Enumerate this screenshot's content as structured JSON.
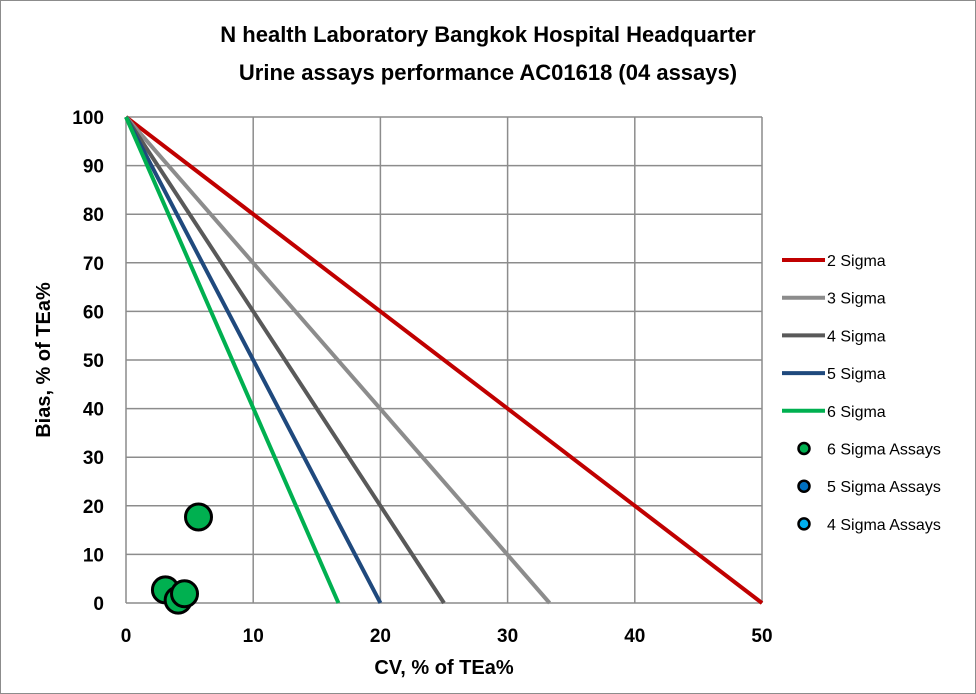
{
  "chart_data": {
    "type": "scatter",
    "title": "N health Laboratory Bangkok Hospital Headquarter",
    "subtitle": "Urine assays performance AC01618 (04 assays)",
    "xlabel": "CV, % of TEa%",
    "ylabel": "Bias, % of TEa%",
    "xlim": [
      0,
      50
    ],
    "ylim": [
      0,
      100
    ],
    "xticks": [
      0,
      10,
      20,
      30,
      40,
      50
    ],
    "yticks": [
      0,
      10,
      20,
      30,
      40,
      50,
      60,
      70,
      80,
      90,
      100
    ],
    "grid": true,
    "legend_position": "right",
    "lines": [
      {
        "name": "2 Sigma",
        "sigma": 2,
        "color": "#c00000",
        "points": [
          [
            0,
            100
          ],
          [
            50,
            0
          ]
        ]
      },
      {
        "name": "3 Sigma",
        "sigma": 3,
        "color": "#8c8c8c",
        "points": [
          [
            0,
            100
          ],
          [
            33.3,
            0
          ]
        ]
      },
      {
        "name": "4 Sigma",
        "sigma": 4,
        "color": "#595959",
        "points": [
          [
            0,
            100
          ],
          [
            25,
            0
          ]
        ]
      },
      {
        "name": "5 Sigma",
        "sigma": 5,
        "color": "#1f497d",
        "points": [
          [
            0,
            100
          ],
          [
            20,
            0
          ]
        ]
      },
      {
        "name": "6 Sigma",
        "sigma": 6,
        "color": "#00b050",
        "points": [
          [
            0,
            100
          ],
          [
            16.7,
            0
          ]
        ]
      }
    ],
    "scatter_series": [
      {
        "name": "6 Sigma Assays",
        "color": "#00b050",
        "points": [
          [
            5.7,
            17.7
          ],
          [
            3.1,
            2.7
          ],
          [
            4.1,
            0.6
          ],
          [
            4.6,
            1.9
          ]
        ]
      },
      {
        "name": "5 Sigma Assays",
        "color": "#0070c0",
        "points": []
      },
      {
        "name": "4 Sigma Assays",
        "color": "#00b0f0",
        "points": []
      }
    ]
  }
}
